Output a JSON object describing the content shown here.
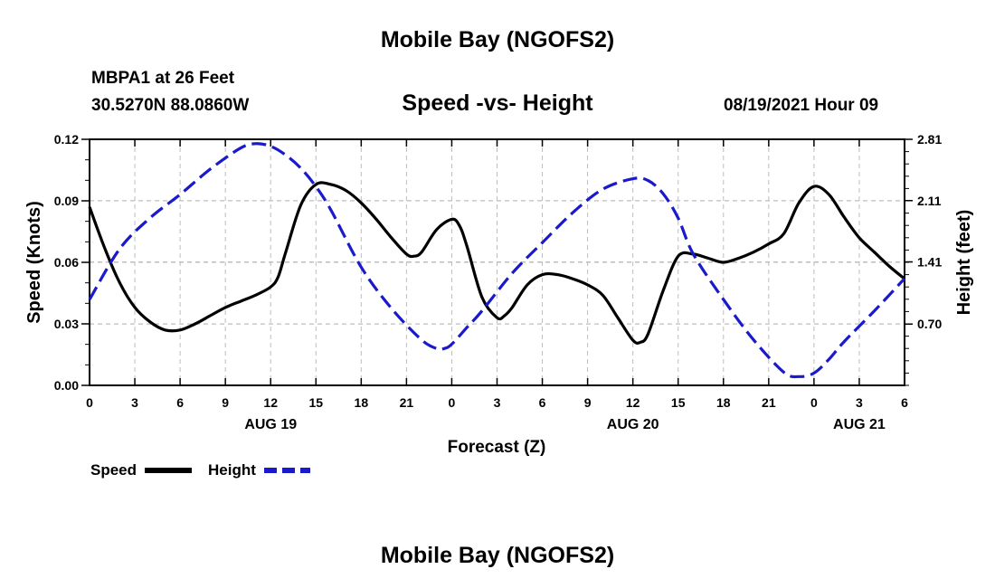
{
  "header": {
    "title": "Mobile Bay (NGOFS2)",
    "station": "MBPA1 at 26 Feet",
    "coords": "30.5270N  88.0860W",
    "subtitle": "Speed -vs- Height",
    "datetime": "08/19/2021 Hour 09"
  },
  "footer": {
    "title": "Mobile Bay (NGOFS2)"
  },
  "colors": {
    "speed": "#000000",
    "height": "#1a1acc",
    "grid": "#bdbdbd"
  },
  "chart_data": {
    "type": "line",
    "xlabel": "Forecast (Z)",
    "ylabel": "Speed (Knots)",
    "y2label": "Height (feet)",
    "xlim": [
      0,
      54
    ],
    "ylim": [
      0,
      0.12
    ],
    "y2lim": [
      0,
      2.81
    ],
    "x_tick_values": [
      0,
      3,
      6,
      9,
      12,
      15,
      18,
      21,
      24,
      27,
      30,
      33,
      36,
      39,
      42,
      45,
      48,
      51,
      54
    ],
    "x_tick_labels": [
      "0",
      "3",
      "6",
      "9",
      "12",
      "15",
      "18",
      "21",
      "0",
      "3",
      "6",
      "9",
      "12",
      "15",
      "18",
      "21",
      "0",
      "3",
      "6"
    ],
    "y_ticks": [
      0.0,
      0.03,
      0.06,
      0.09,
      0.12
    ],
    "y_tick_labels": [
      "0.00",
      "0.03",
      "0.06",
      "0.09",
      "0.12"
    ],
    "y2_ticks": [
      0.7,
      1.41,
      2.11,
      2.81
    ],
    "y2_tick_labels": [
      "0.70",
      "1.41",
      "2.11",
      "2.81"
    ],
    "date_labels": [
      {
        "x": 12,
        "text": "AUG 19"
      },
      {
        "x": 36,
        "text": "AUG 20"
      },
      {
        "x": 51,
        "text": "AUG 21"
      }
    ],
    "grid": true,
    "legend_position": "bottom-left",
    "series": [
      {
        "name": "Speed",
        "axis": "left",
        "style": "solid",
        "x": [
          0,
          1,
          2,
          3,
          4,
          5,
          6,
          7,
          8,
          9,
          10,
          11,
          12,
          12.5,
          13,
          14,
          15,
          16,
          17,
          18,
          19,
          20,
          21,
          21.5,
          22,
          23,
          24,
          24.5,
          25,
          26,
          27,
          27.5,
          28,
          29,
          30,
          31,
          32,
          33,
          34,
          35,
          36,
          36.5,
          37,
          38,
          39,
          40,
          41,
          42,
          43,
          44,
          45,
          46,
          47,
          48,
          49,
          50,
          51,
          52,
          53,
          54
        ],
        "values": [
          0.087,
          0.067,
          0.05,
          0.038,
          0.031,
          0.027,
          0.027,
          0.03,
          0.034,
          0.038,
          0.041,
          0.044,
          0.048,
          0.053,
          0.065,
          0.088,
          0.098,
          0.098,
          0.095,
          0.089,
          0.081,
          0.072,
          0.064,
          0.063,
          0.065,
          0.076,
          0.081,
          0.078,
          0.068,
          0.043,
          0.033,
          0.034,
          0.038,
          0.049,
          0.054,
          0.054,
          0.052,
          0.049,
          0.044,
          0.033,
          0.022,
          0.021,
          0.025,
          0.046,
          0.063,
          0.064,
          0.062,
          0.06,
          0.062,
          0.065,
          0.069,
          0.074,
          0.089,
          0.097,
          0.093,
          0.082,
          0.072,
          0.065,
          0.058,
          0.052
        ]
      },
      {
        "name": "Height",
        "axis": "right",
        "style": "dashed",
        "x": [
          0,
          2,
          4,
          6,
          8,
          10,
          11,
          12,
          13,
          14,
          15,
          16,
          18,
          20,
          22,
          23,
          23.5,
          24,
          25,
          26,
          28,
          30,
          32,
          34,
          36,
          37,
          38,
          39,
          40,
          42,
          44,
          46,
          47,
          48,
          49,
          50,
          52,
          54
        ],
        "values": [
          0.98,
          1.56,
          1.91,
          2.18,
          2.47,
          2.71,
          2.76,
          2.73,
          2.63,
          2.48,
          2.27,
          2.0,
          1.35,
          0.88,
          0.52,
          0.42,
          0.42,
          0.47,
          0.66,
          0.85,
          1.28,
          1.63,
          1.97,
          2.24,
          2.36,
          2.34,
          2.19,
          1.91,
          1.5,
          0.98,
          0.52,
          0.15,
          0.1,
          0.14,
          0.3,
          0.5,
          0.85,
          1.22
        ]
      }
    ]
  }
}
